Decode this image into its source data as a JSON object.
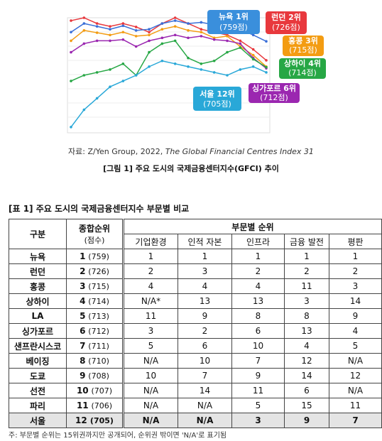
{
  "figure": {
    "ylim": [
      600,
      800
    ],
    "series": [
      {
        "name": "런던",
        "color": "#e8383d",
        "values": [
          795,
          800,
          790,
          785,
          790,
          784,
          775,
          790,
          800,
          790,
          780,
          775,
          770,
          760,
          745,
          726
        ]
      },
      {
        "name": "뉴욕",
        "color": "#3a6fd8",
        "values": [
          775,
          790,
          785,
          780,
          786,
          778,
          780,
          790,
          795,
          790,
          792,
          788,
          785,
          780,
          770,
          759
        ]
      },
      {
        "name": "홍콩",
        "color": "#f39c12",
        "values": [
          760,
          778,
          774,
          770,
          775,
          768,
          770,
          780,
          785,
          778,
          775,
          765,
          768,
          750,
          735,
          715
        ]
      },
      {
        "name": "싱가포르",
        "color": "#9b27b0",
        "values": [
          740,
          755,
          760,
          760,
          762,
          750,
          760,
          765,
          770,
          765,
          768,
          762,
          760,
          755,
          730,
          712
        ]
      },
      {
        "name": "상하이",
        "color": "#27a745",
        "values": [
          690,
          700,
          705,
          710,
          720,
          700,
          740,
          755,
          760,
          730,
          720,
          725,
          740,
          748,
          728,
          714
        ]
      },
      {
        "name": "서울",
        "color": "#29a8d8",
        "values": [
          610,
          640,
          660,
          680,
          690,
          700,
          715,
          725,
          720,
          715,
          710,
          705,
          700,
          710,
          715,
          705
        ]
      }
    ],
    "callouts": [
      {
        "label": "뉴욕 1위",
        "score": "(759점)"
      },
      {
        "label": "런던 2위",
        "score": "(726점)"
      },
      {
        "label": "홍콩 3위",
        "score": "(715점)"
      },
      {
        "label": "상하이 4위",
        "score": "(714점)"
      },
      {
        "label": "싱가포르 6위",
        "score": "(712점)"
      },
      {
        "label": "서울 12위",
        "score": "(705점)"
      }
    ],
    "source_prefix": "자료: Z/Yen Group, 2022,",
    "source_title": "The Global Financial Centres Index 31",
    "caption": "[그림 1] 주요 도시의 국제금융센터지수(GFCI) 추이"
  },
  "table": {
    "title": "[표 1] 주요 도시의 국제금융센터지수 부문별 비교",
    "head": {
      "city": "구분",
      "overall": "종합순위",
      "overall_sub": "(점수)",
      "sector": "부문별 순위",
      "cols": [
        "기업환경",
        "인적 자본",
        "인프라",
        "금융 발전",
        "평판"
      ]
    },
    "rows": [
      [
        "뉴욕",
        1,
        "(759)",
        1,
        1,
        1,
        1,
        1
      ],
      [
        "런던",
        2,
        "(726)",
        2,
        3,
        2,
        2,
        2
      ],
      [
        "홍콩",
        3,
        "(715)",
        4,
        4,
        4,
        11,
        3
      ],
      [
        "상하이",
        4,
        "(714)",
        "N/A*",
        13,
        13,
        3,
        14
      ],
      [
        "LA",
        5,
        "(713)",
        11,
        9,
        8,
        8,
        9
      ],
      [
        "싱가포르",
        6,
        "(712)",
        3,
        2,
        6,
        13,
        4
      ],
      [
        "샌프란시스코",
        7,
        "(711)",
        5,
        6,
        10,
        4,
        5
      ],
      [
        "베이징",
        8,
        "(710)",
        "N/A",
        10,
        7,
        12,
        "N/A"
      ],
      [
        "도쿄",
        9,
        "(708)",
        10,
        7,
        9,
        14,
        12
      ],
      [
        "선전",
        10,
        "(707)",
        "N/A",
        14,
        11,
        6,
        "N/A"
      ],
      [
        "파리",
        11,
        "(706)",
        "N/A",
        "N/A",
        5,
        15,
        11
      ],
      [
        "서울",
        12,
        "(705)",
        "N/A",
        "N/A",
        3,
        9,
        7
      ]
    ],
    "note": "주: 부문별 순위는 15위권까지만 공개되어, 순위권 밖이면 'N/A'로 표기됨"
  }
}
